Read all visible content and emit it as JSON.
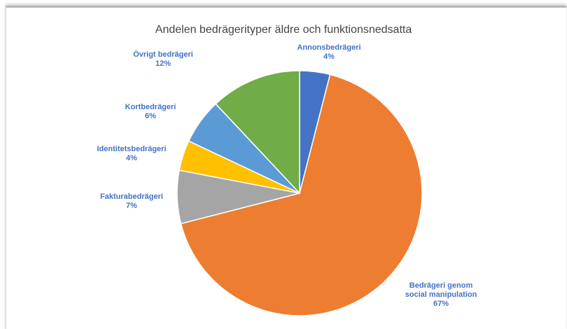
{
  "chart_data": {
    "type": "pie",
    "title": "Andelen bedrägerityper äldre och funktionsnedsatta",
    "categories": [
      "Annonsbedrägeri",
      "Bedrägeri genom social manipulation",
      "Fakturabedrägeri",
      "Identitetsbedrägeri",
      "Kortbedrägeri",
      "Övrigt bedrägeri"
    ],
    "values": [
      4,
      67,
      7,
      4,
      6,
      12
    ],
    "value_labels": [
      "4%",
      "67%",
      "7%",
      "4%",
      "6%",
      "12%"
    ],
    "colors": [
      "#4472c4",
      "#ed7d31",
      "#a5a5a5",
      "#ffc000",
      "#5b9bd5",
      "#70ad47"
    ]
  }
}
